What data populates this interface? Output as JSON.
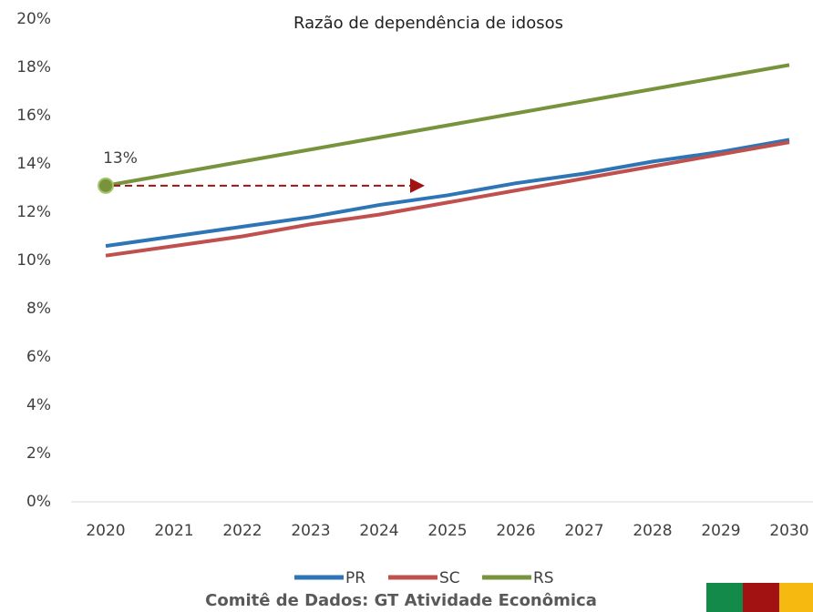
{
  "chart_data": {
    "type": "line",
    "title": "Razão de dependência de idosos",
    "categories": [
      "2020",
      "2021",
      "2022",
      "2023",
      "2024",
      "2025",
      "2026",
      "2027",
      "2028",
      "2029",
      "2030"
    ],
    "series": [
      {
        "name": "PR",
        "color": "#2e75b6",
        "values": [
          10.6,
          11.0,
          11.4,
          11.8,
          12.3,
          12.7,
          13.2,
          13.6,
          14.1,
          14.5,
          15.0
        ]
      },
      {
        "name": "SC",
        "color": "#c0504d",
        "values": [
          10.2,
          10.6,
          11.0,
          11.5,
          11.9,
          12.4,
          12.9,
          13.4,
          13.9,
          14.4,
          14.9
        ]
      },
      {
        "name": "RS",
        "color": "#77933c",
        "values": [
          13.1,
          13.6,
          14.1,
          14.6,
          15.1,
          15.6,
          16.1,
          16.6,
          17.1,
          17.6,
          18.1
        ],
        "value_labels": [
          "13%",
          null,
          null,
          null,
          null,
          null,
          null,
          null,
          null,
          null,
          null
        ]
      }
    ],
    "ylim": [
      0,
      20
    ],
    "yticks": [
      {
        "value": 0,
        "label": "0%"
      },
      {
        "value": 2,
        "label": "2%"
      },
      {
        "value": 4,
        "label": "4%"
      },
      {
        "value": 6,
        "label": "6%"
      },
      {
        "value": 8,
        "label": "8%"
      },
      {
        "value": 10,
        "label": "10%"
      },
      {
        "value": 12,
        "label": "12%"
      },
      {
        "value": 14,
        "label": "14%"
      },
      {
        "value": 16,
        "label": "16%"
      },
      {
        "value": 18,
        "label": "18%"
      },
      {
        "value": 20,
        "label": "20%"
      }
    ],
    "grid": false,
    "legend": "bottom",
    "footer": "Comitê de Dados: GT Atividade Econômica"
  }
}
